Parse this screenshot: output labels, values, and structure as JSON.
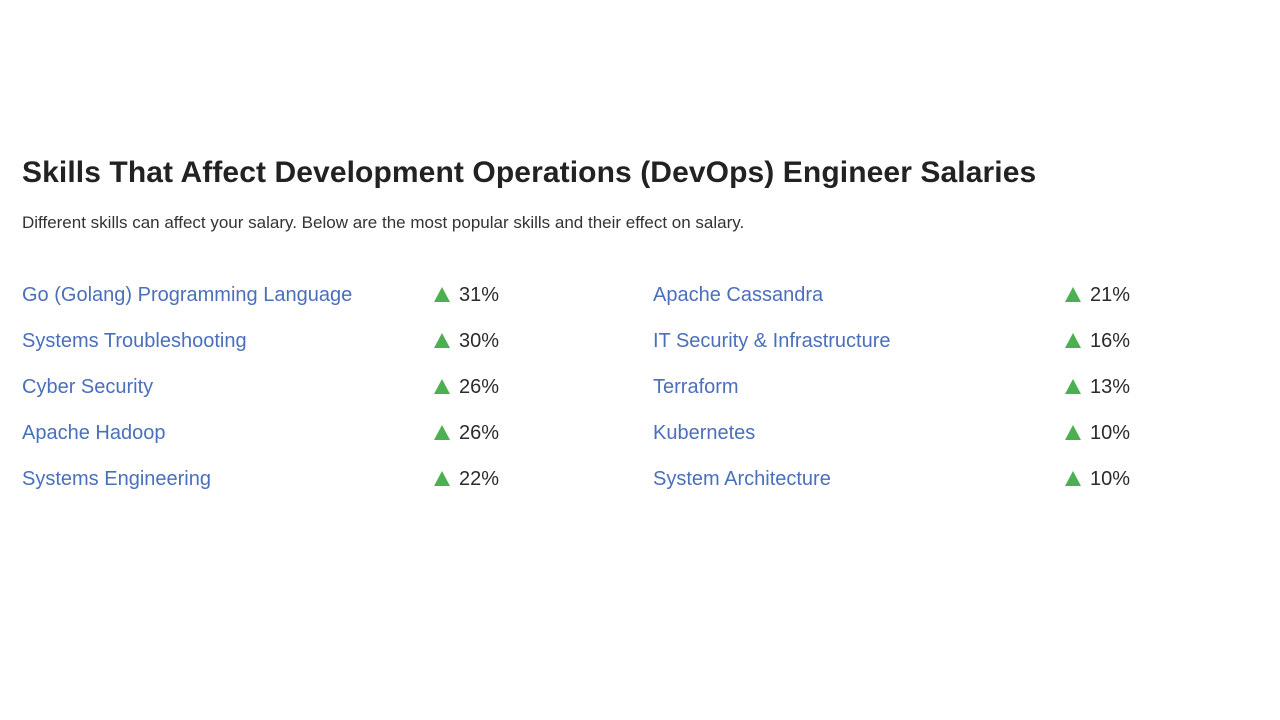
{
  "section": {
    "title": "Skills That Affect Development Operations (DevOps) Engineer Salaries",
    "subtitle": "Different skills can affect your salary. Below are the most popular skills and their effect on salary."
  },
  "colors": {
    "link": "#4a6fbb",
    "positive_arrow": "#4caf50",
    "text": "#2b2b2b"
  },
  "skills": {
    "left": [
      {
        "name": "Go (Golang) Programming Language",
        "effect": "31%",
        "direction": "up",
        "icon": "triangle-up-icon"
      },
      {
        "name": "Systems Troubleshooting",
        "effect": "30%",
        "direction": "up",
        "icon": "triangle-up-icon"
      },
      {
        "name": "Cyber Security",
        "effect": "26%",
        "direction": "up",
        "icon": "triangle-up-icon"
      },
      {
        "name": "Apache Hadoop",
        "effect": "26%",
        "direction": "up",
        "icon": "triangle-up-icon"
      },
      {
        "name": "Systems Engineering",
        "effect": "22%",
        "direction": "up",
        "icon": "triangle-up-icon"
      }
    ],
    "right": [
      {
        "name": "Apache Cassandra",
        "effect": "21%",
        "direction": "up",
        "icon": "triangle-up-icon"
      },
      {
        "name": "IT Security & Infrastructure",
        "effect": "16%",
        "direction": "up",
        "icon": "triangle-up-icon"
      },
      {
        "name": "Terraform",
        "effect": "13%",
        "direction": "up",
        "icon": "triangle-up-icon"
      },
      {
        "name": "Kubernetes",
        "effect": "10%",
        "direction": "up",
        "icon": "triangle-up-icon"
      },
      {
        "name": "System Architecture",
        "effect": "10%",
        "direction": "up",
        "icon": "triangle-up-icon"
      }
    ]
  }
}
